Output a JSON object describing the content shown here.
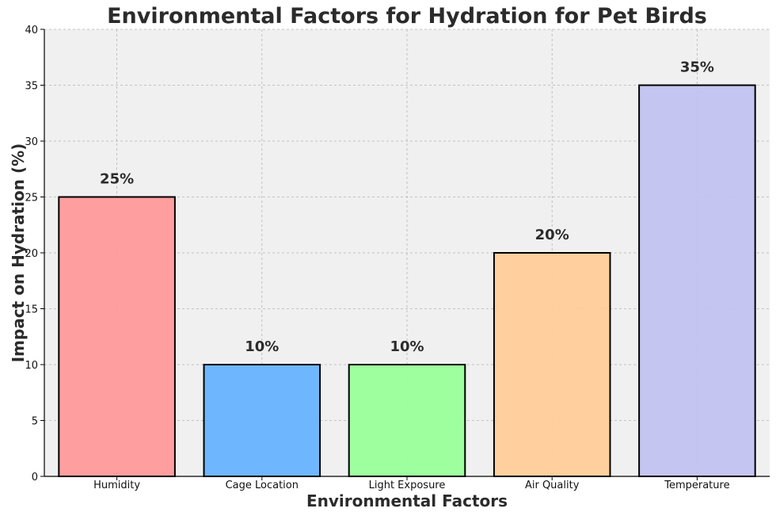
{
  "chart_data": {
    "type": "bar",
    "title": "Environmental Factors for Hydration for Pet Birds",
    "xlabel": "Environmental Factors",
    "ylabel": "Impact on Hydration (%)",
    "categories": [
      "Humidity",
      "Cage Location",
      "Light Exposure",
      "Air Quality",
      "Temperature"
    ],
    "values": [
      25,
      10,
      10,
      20,
      35
    ],
    "value_labels": [
      "25%",
      "10%",
      "10%",
      "20%",
      "35%"
    ],
    "colors": [
      "#ff9999",
      "#66b3ff",
      "#99ff99",
      "#ffcc99",
      "#c2c2f0"
    ],
    "ylim": [
      0,
      40
    ],
    "yticks": [
      0,
      5,
      10,
      15,
      20,
      25,
      30,
      35,
      40
    ],
    "grid": true,
    "plot_background": "#f0f0f0"
  }
}
